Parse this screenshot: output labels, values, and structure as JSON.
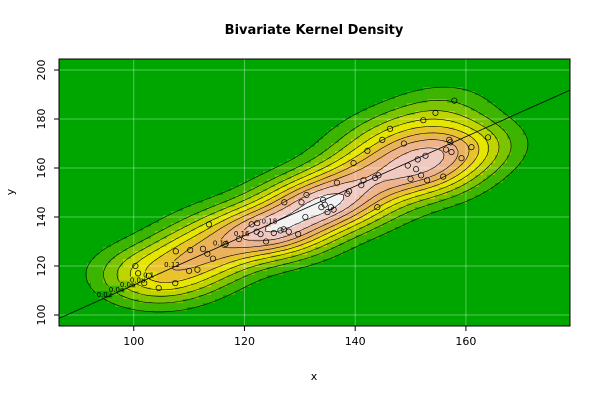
{
  "chart_data": {
    "type": "density",
    "title": "Bivariate Kernel Density",
    "x_label": "x",
    "y_label": "y",
    "xlim": [
      86.5,
      178.8
    ],
    "ylim": [
      95.5,
      204.5
    ],
    "xticks": [
      100,
      120,
      140,
      160
    ],
    "yticks": [
      100,
      120,
      140,
      160,
      180,
      200
    ],
    "grid": true,
    "contour_levels": [
      0.02,
      0.04,
      0.06,
      0.08,
      0.1,
      0.12,
      0.14,
      0.16,
      0.18
    ],
    "fill_colors": [
      "#00A600",
      "#3BB500",
      "#7AC400",
      "#BFD400",
      "#E6E600",
      "#E8C32E",
      "#EBB25E",
      "#EDB48E",
      "#F0C9C0",
      "#F2F2F2"
    ],
    "point_color": "#000000",
    "regression_line": true,
    "x": [
      100.3,
      100.8,
      102.7,
      101.9,
      104.5,
      107.5,
      107.6,
      110.2,
      110,
      111.5,
      112.5,
      113.3,
      113.6,
      114.3,
      116.6,
      119,
      121.3,
      122.2,
      122.3,
      122.9,
      123.9,
      125.3,
      126.5,
      127.1,
      127.2,
      128,
      129.7,
      130.3,
      131,
      131.2,
      133.9,
      134.2,
      134.5,
      135,
      135.6,
      136.1,
      136.7,
      138.6,
      138.9,
      139.7,
      141.1,
      141.5,
      142.2,
      143.6,
      144,
      144.2,
      144.9,
      146.3,
      148.8,
      149.5,
      150,
      151,
      151.3,
      151.9,
      152.3,
      152.7,
      153,
      154.5,
      155.9,
      156.4,
      157,
      157.2,
      157.4,
      157.9,
      159.2,
      161,
      164
    ],
    "values": [
      120,
      117,
      116,
      113,
      111,
      113,
      126,
      126.5,
      118,
      118.5,
      127,
      125,
      137,
      123,
      129,
      131,
      137,
      134,
      137.5,
      133,
      130,
      133.5,
      134.5,
      135,
      146,
      134,
      133,
      146,
      140,
      149,
      144,
      147,
      145,
      142,
      144,
      143,
      154,
      149.5,
      150.5,
      162,
      153,
      155,
      167,
      156,
      144,
      157,
      171.5,
      176,
      170,
      161,
      155.5,
      159.5,
      163.5,
      157,
      179.5,
      165,
      155,
      182.5,
      156.5,
      167.5,
      171.5,
      170.5,
      166.5,
      187.5,
      164,
      168.5,
      172.5
    ]
  }
}
